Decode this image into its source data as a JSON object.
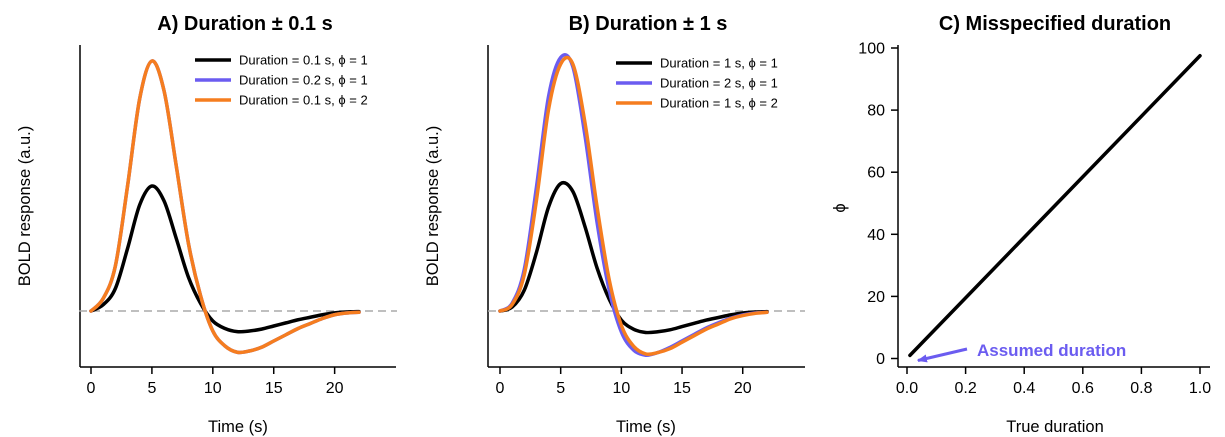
{
  "chart_data": [
    {
      "panel": "A",
      "type": "line",
      "title": "A) Duration ± 0.1 s",
      "xlabel": "Time (s)",
      "ylabel": "BOLD response (a.u.)",
      "xlim": [
        0,
        22
      ],
      "xticks": [
        0,
        5,
        10,
        15,
        20
      ],
      "y_tick_labels_shown": false,
      "baseline": {
        "y": 0,
        "style": "dashed",
        "color": "#aaaaaa"
      },
      "legend_position": "top-right",
      "series": [
        {
          "name": "Duration = 0.1 s, ϕ = 1",
          "color": "#000000",
          "x": [
            0,
            1,
            2,
            3,
            4,
            5,
            6,
            7,
            8,
            9,
            10,
            11,
            12,
            13,
            14,
            15,
            16,
            17,
            18,
            19,
            20,
            21,
            22
          ],
          "y": [
            0,
            0.05,
            0.18,
            0.5,
            0.85,
            1.0,
            0.88,
            0.58,
            0.27,
            0.06,
            -0.08,
            -0.14,
            -0.165,
            -0.16,
            -0.145,
            -0.12,
            -0.095,
            -0.07,
            -0.05,
            -0.03,
            -0.015,
            -0.008,
            -0.005
          ]
        },
        {
          "name": "Duration = 0.2 s, ϕ = 1",
          "color": "#6b5cf0",
          "x": [
            0,
            1,
            2,
            3,
            4,
            5,
            6,
            7,
            8,
            9,
            10,
            11,
            12,
            13,
            14,
            15,
            16,
            17,
            18,
            19,
            20,
            21,
            22
          ],
          "y": [
            0,
            0.1,
            0.36,
            1.0,
            1.7,
            2.0,
            1.76,
            1.16,
            0.54,
            0.12,
            -0.16,
            -0.28,
            -0.33,
            -0.32,
            -0.29,
            -0.24,
            -0.19,
            -0.14,
            -0.1,
            -0.06,
            -0.03,
            -0.016,
            -0.01
          ]
        },
        {
          "name": "Duration = 0.1 s, ϕ = 2",
          "color": "#f57d1f",
          "x": [
            0,
            1,
            2,
            3,
            4,
            5,
            6,
            7,
            8,
            9,
            10,
            11,
            12,
            13,
            14,
            15,
            16,
            17,
            18,
            19,
            20,
            21,
            22
          ],
          "y": [
            0,
            0.1,
            0.36,
            1.0,
            1.7,
            2.0,
            1.76,
            1.16,
            0.54,
            0.12,
            -0.16,
            -0.28,
            -0.33,
            -0.32,
            -0.29,
            -0.24,
            -0.19,
            -0.14,
            -0.1,
            -0.06,
            -0.03,
            -0.016,
            -0.01
          ]
        }
      ]
    },
    {
      "panel": "B",
      "type": "line",
      "title": "B) Duration ± 1 s",
      "xlabel": "Time (s)",
      "ylabel": "BOLD response (a.u.)",
      "xlim": [
        0,
        22
      ],
      "xticks": [
        0,
        5,
        10,
        15,
        20
      ],
      "y_tick_labels_shown": false,
      "baseline": {
        "y": 0,
        "style": "dashed",
        "color": "#aaaaaa"
      },
      "legend_position": "top-right",
      "series": [
        {
          "name": "Duration = 1 s, ϕ = 1",
          "color": "#000000",
          "x": [
            0,
            1,
            2,
            3,
            4,
            5,
            6,
            7,
            8,
            9,
            10,
            11,
            12,
            13,
            14,
            15,
            16,
            17,
            18,
            19,
            20,
            21,
            22
          ],
          "y": [
            0,
            0.03,
            0.16,
            0.45,
            0.8,
            0.98,
            0.92,
            0.65,
            0.33,
            0.09,
            -0.07,
            -0.14,
            -0.165,
            -0.16,
            -0.145,
            -0.12,
            -0.095,
            -0.07,
            -0.05,
            -0.03,
            -0.015,
            -0.008,
            -0.005
          ]
        },
        {
          "name": "Duration = 2 s, ϕ = 1",
          "color": "#6b5cf0",
          "x": [
            0,
            1,
            2,
            3,
            4,
            5,
            6,
            7,
            8,
            9,
            10,
            11,
            12,
            13,
            14,
            15,
            16,
            17,
            18,
            19,
            20,
            21,
            22
          ],
          "y": [
            0,
            0.06,
            0.32,
            0.95,
            1.65,
            1.95,
            1.88,
            1.35,
            0.68,
            0.16,
            -0.16,
            -0.3,
            -0.34,
            -0.32,
            -0.28,
            -0.23,
            -0.18,
            -0.13,
            -0.09,
            -0.055,
            -0.03,
            -0.015,
            -0.01
          ]
        },
        {
          "name": "Duration = 1 s, ϕ = 2",
          "color": "#f57d1f",
          "x": [
            0,
            1,
            2,
            3,
            4,
            5,
            6,
            7,
            8,
            9,
            10,
            11,
            12,
            13,
            14,
            15,
            16,
            17,
            18,
            19,
            20,
            21,
            22
          ],
          "y": [
            0,
            0.05,
            0.28,
            0.85,
            1.55,
            1.9,
            1.9,
            1.45,
            0.8,
            0.24,
            -0.11,
            -0.27,
            -0.33,
            -0.32,
            -0.29,
            -0.24,
            -0.19,
            -0.14,
            -0.1,
            -0.06,
            -0.035,
            -0.018,
            -0.01
          ]
        }
      ]
    },
    {
      "panel": "C",
      "type": "line",
      "title": "C) Misspecified duration",
      "xlabel": "True duration",
      "ylabel": "ϕ",
      "xlim": [
        0,
        1
      ],
      "ylim": [
        0,
        100
      ],
      "xticks": [
        0.0,
        0.2,
        0.4,
        0.6,
        0.8,
        1.0
      ],
      "xtick_labels": [
        "0.0",
        "0.2",
        "0.4",
        "0.6",
        "0.8",
        "1.0"
      ],
      "yticks": [
        0,
        20,
        40,
        60,
        80,
        100
      ],
      "series": [
        {
          "name": "",
          "color": "#000000",
          "x": [
            0.01,
            1.0
          ],
          "y": [
            1,
            97.5
          ]
        }
      ],
      "annotation": {
        "text": "Assumed duration",
        "color": "#6b5cf0",
        "points_to": {
          "x": 0.01,
          "y": 0
        }
      }
    }
  ]
}
